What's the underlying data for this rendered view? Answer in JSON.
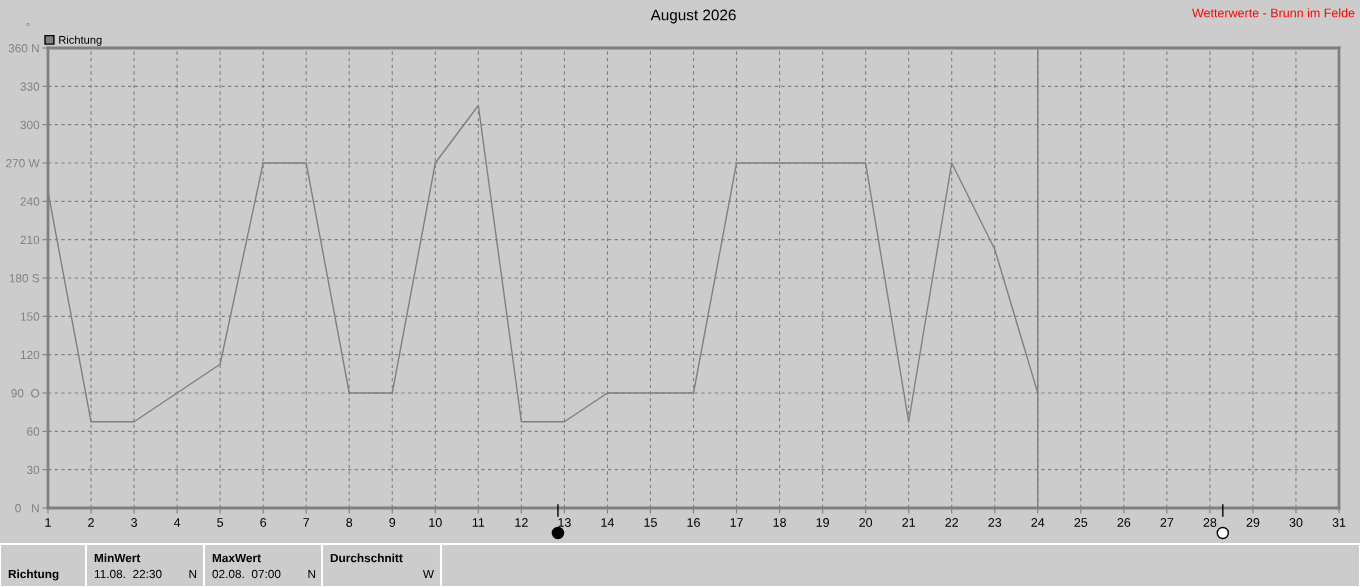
{
  "chart_data": {
    "type": "line",
    "title": "August 2026",
    "subtitle": "Wetterwerte - Brunn im Felde",
    "ylabel": "°",
    "x": [
      1,
      2,
      3,
      4,
      5,
      6,
      7,
      8,
      9,
      10,
      11,
      12,
      13,
      14,
      15,
      16,
      17,
      18,
      19,
      20,
      21,
      22,
      23,
      24
    ],
    "series": [
      {
        "name": "Richtung",
        "color": "#808080",
        "values": [
          247.5,
          67.5,
          67.5,
          90,
          112.5,
          270,
          270,
          90,
          90,
          270,
          315,
          67.5,
          67.5,
          90,
          90,
          90,
          270,
          270,
          270,
          270,
          67.5,
          270,
          202.5,
          90
        ]
      }
    ],
    "xlim": [
      1,
      31
    ],
    "xticks": [
      1,
      2,
      3,
      4,
      5,
      6,
      7,
      8,
      9,
      10,
      11,
      12,
      13,
      14,
      15,
      16,
      17,
      18,
      19,
      20,
      21,
      22,
      23,
      24,
      25,
      26,
      27,
      28,
      29,
      30,
      31
    ],
    "ylim": [
      0,
      360
    ],
    "yticks": [
      {
        "value": 0,
        "label": "0   N"
      },
      30,
      60,
      {
        "value": 90,
        "label": "90  O"
      },
      120,
      150,
      {
        "value": 180,
        "label": "180 S"
      },
      210,
      240,
      {
        "value": 270,
        "label": "270 W"
      },
      300,
      330,
      {
        "value": 360,
        "label": "360 N"
      }
    ],
    "ref_lines": [
      {
        "axis": "x",
        "value": 24,
        "label": null,
        "color": "#808080",
        "line_style": "solid"
      }
    ],
    "annotations": [
      "Richtung",
      "MinWert",
      "11.08.  22:30",
      "N",
      "MaxWert",
      "02.08.  07:00",
      "N",
      "Durchschnitt",
      "W"
    ],
    "grid": true,
    "legend": "top left",
    "marker": "none",
    "line_style": "solid"
  }
}
